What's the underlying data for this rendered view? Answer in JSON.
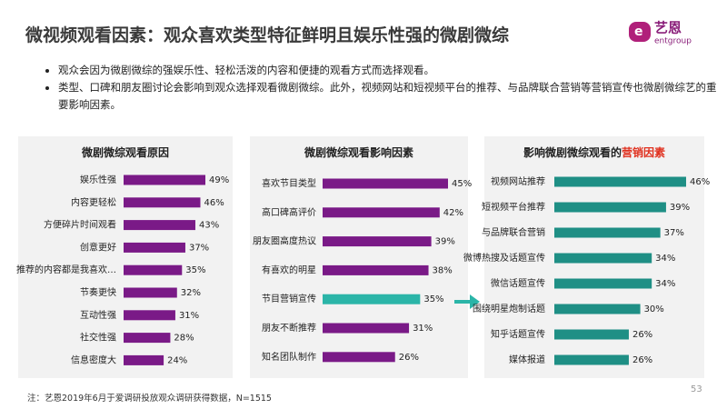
{
  "title": "微视频观看因素：观众喜欢类型特征鲜明且娱乐性强的微剧微综",
  "logo": {
    "name": "艺恩",
    "sub": "entgroup"
  },
  "bullets": [
    "观众会因为微剧微综的强娱乐性、轻松活泼的内容和便捷的观看方式而选择观看。",
    "类型、口碑和朋友圈讨论会影响到观众选择观看微剧微综。此外，视频网站和短视频平台的推荐、与品牌联合营销等营销宣传也微剧微综艺的重要影响因素。"
  ],
  "chart_data": [
    {
      "type": "bar",
      "orientation": "horizontal",
      "title": "微剧微综观看原因",
      "categories": [
        "娱乐性强",
        "内容更轻松",
        "方便碎片时间观看",
        "创意更好",
        "推荐的内容都是我喜欢…",
        "节奏更快",
        "互动性强",
        "社交性强",
        "信息密度大"
      ],
      "values": [
        49,
        46,
        43,
        37,
        35,
        32,
        31,
        28,
        24
      ],
      "value_labels": [
        "49%",
        "46%",
        "43%",
        "37%",
        "35%",
        "32%",
        "31%",
        "28%",
        "24%"
      ],
      "color": "#7a1a87"
    },
    {
      "type": "bar",
      "orientation": "horizontal",
      "title": "微剧微综观看影响因素",
      "categories": [
        "喜欢节目类型",
        "高口碑高评价",
        "朋友圈高度热议",
        "有喜欢的明星",
        "节目营销宣传",
        "朋友不断推荐",
        "知名团队制作"
      ],
      "values": [
        45,
        42,
        39,
        38,
        35,
        31,
        26
      ],
      "value_labels": [
        "45%",
        "42%",
        "39%",
        "38%",
        "35%",
        "31%",
        "26%"
      ],
      "colors": [
        "#7a1a87",
        "#7a1a87",
        "#7a1a87",
        "#7a1a87",
        "#2bb5a8",
        "#7a1a87",
        "#7a1a87"
      ]
    },
    {
      "type": "bar",
      "orientation": "horizontal",
      "title": "影响微剧微综观看的",
      "title_highlight": "营销因素",
      "title_highlight_color": "#e0301e",
      "categories": [
        "视频网站推荐",
        "短视频平台推荐",
        "与品牌联合营销",
        "微博热搜及话题宣传",
        "微信话题宣传",
        "围绕明星炮制话题",
        "知乎话题宣传",
        "媒体报道"
      ],
      "values": [
        46,
        39,
        37,
        34,
        34,
        30,
        26,
        26
      ],
      "value_labels": [
        "46%",
        "39%",
        "37%",
        "34%",
        "34%",
        "30%",
        "26%",
        "26%"
      ],
      "color": "#1f8f85"
    }
  ],
  "note": "注：艺恩2019年6月于爱调研投放观众调研获得数据，N=1515",
  "page_number": "53"
}
